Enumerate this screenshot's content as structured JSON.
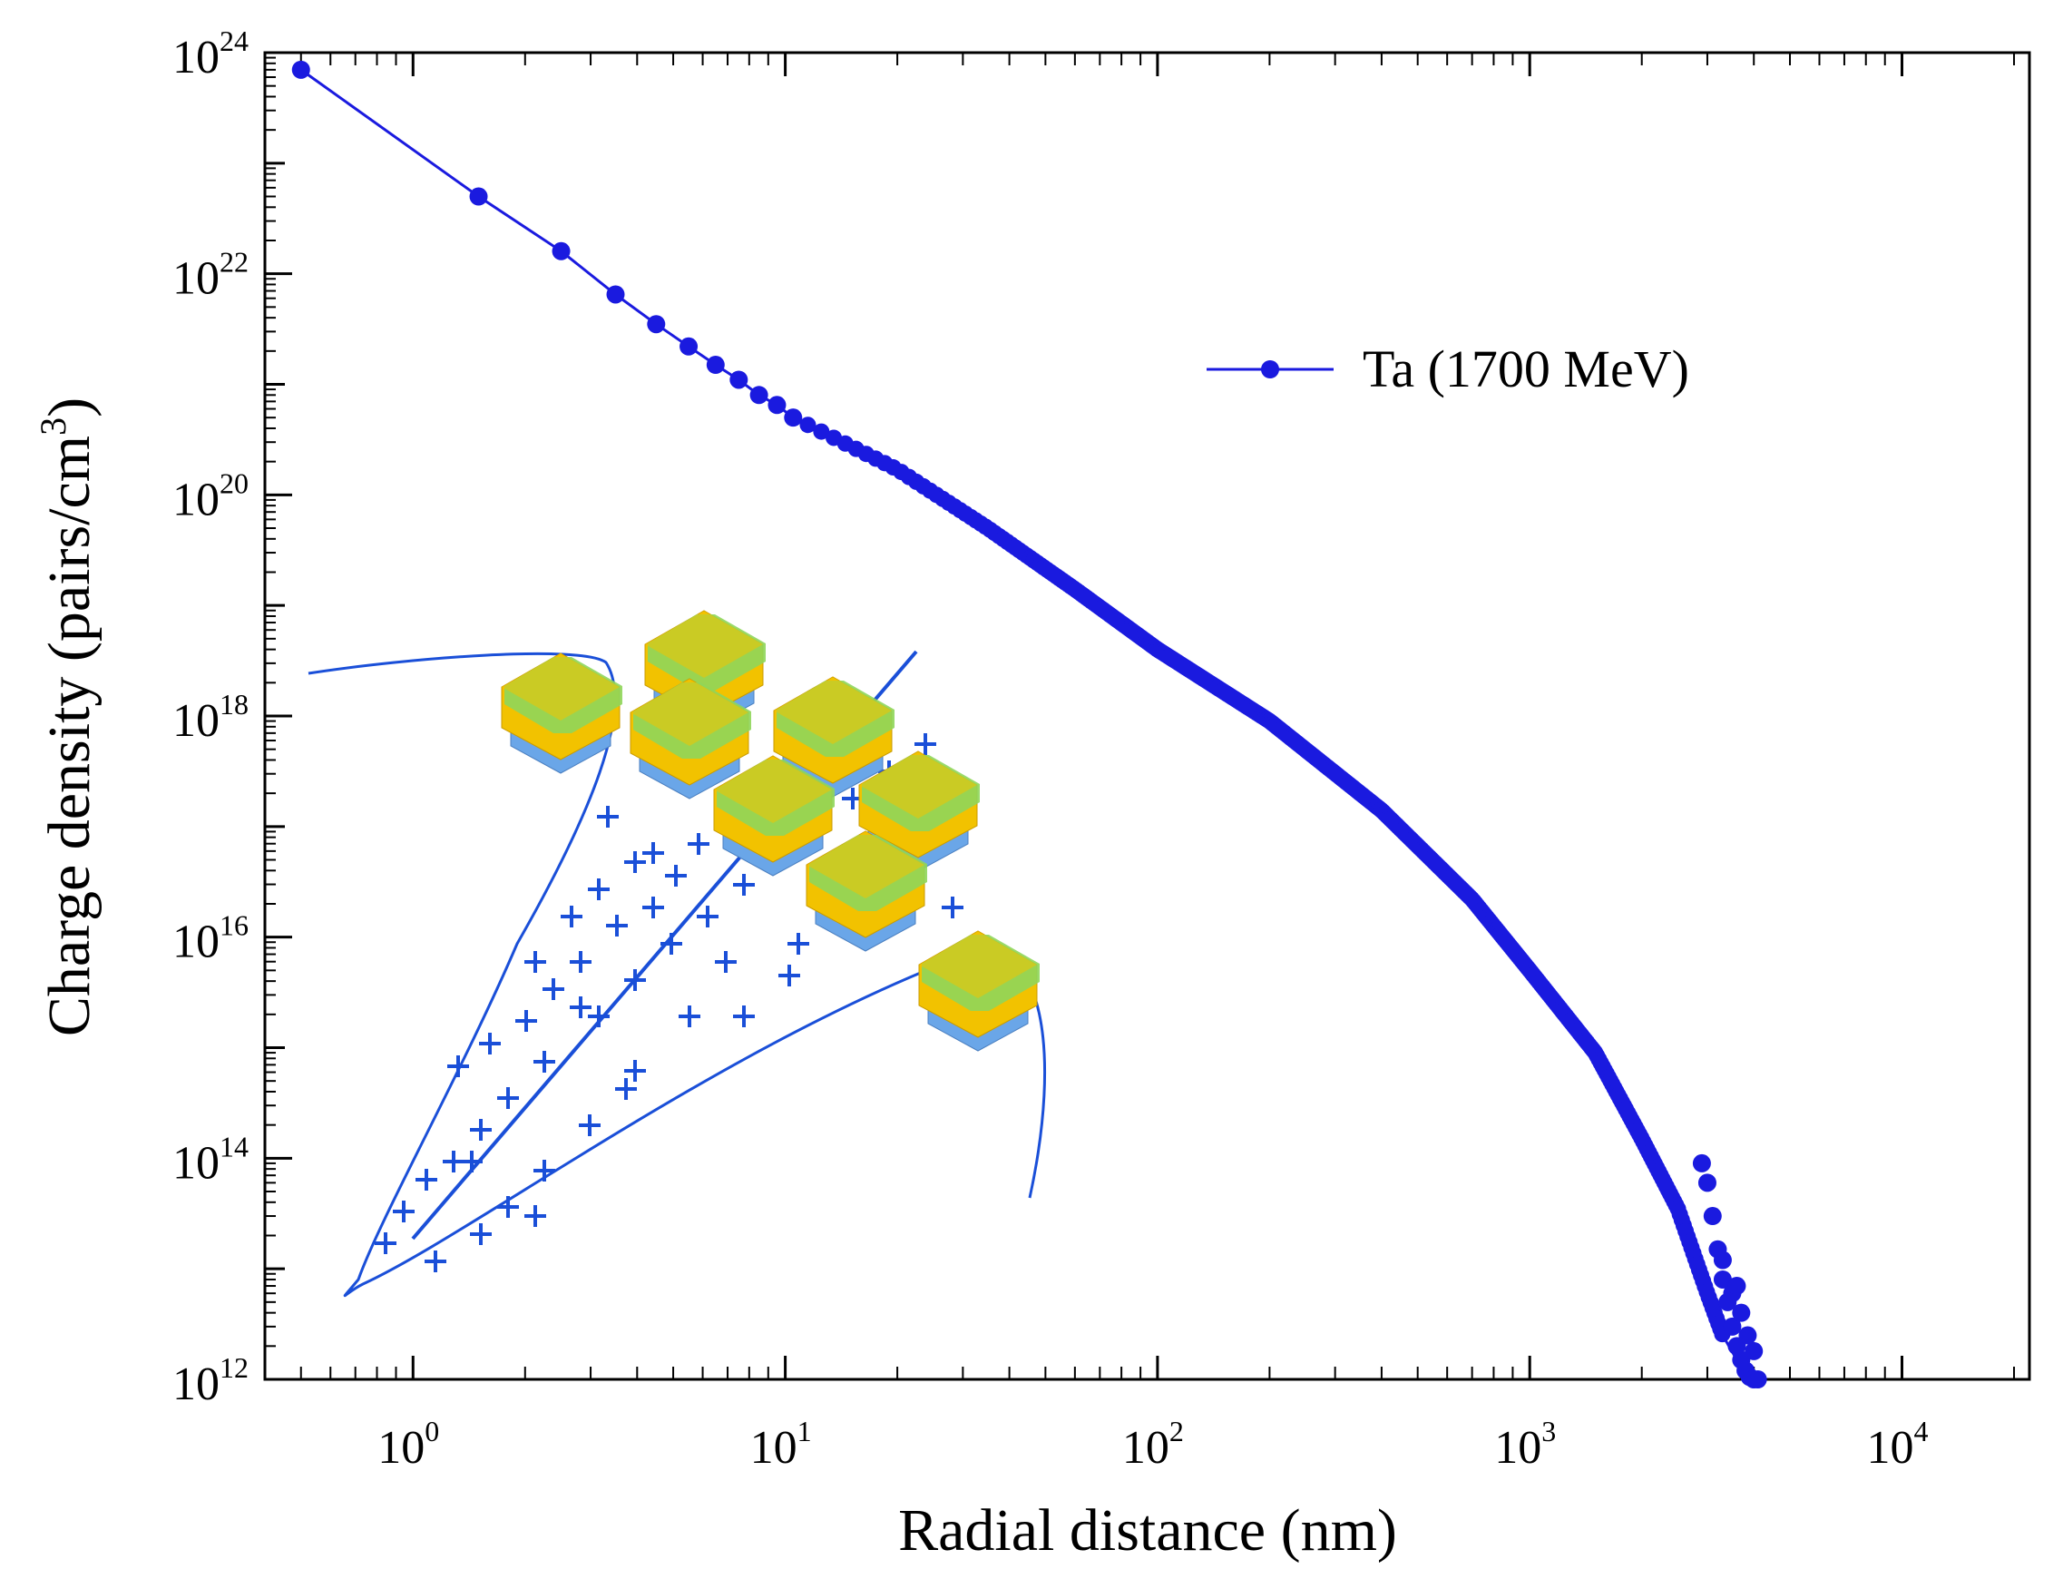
{
  "chart_data": {
    "type": "line",
    "xlabel": "Radial distance (nm)",
    "ylabel": "Charge density (pairs/cm",
    "ylabel_sup": "3",
    "ylabel_tail": ")",
    "xscale": "log",
    "yscale": "log",
    "xlim": [
      0.4,
      22000
    ],
    "ylim": [
      1000000000000.0,
      1e+24
    ],
    "x_ticks": [
      {
        "base": "10",
        "exp": "0",
        "value": 1
      },
      {
        "base": "10",
        "exp": "1",
        "value": 10
      },
      {
        "base": "10",
        "exp": "2",
        "value": 100
      },
      {
        "base": "10",
        "exp": "3",
        "value": 1000
      },
      {
        "base": "10",
        "exp": "4",
        "value": 10000
      }
    ],
    "y_ticks": [
      {
        "base": "10",
        "exp": "12",
        "value": 1000000000000.0
      },
      {
        "base": "10",
        "exp": "14",
        "value": 100000000000000.0
      },
      {
        "base": "10",
        "exp": "16",
        "value": 1e+16
      },
      {
        "base": "10",
        "exp": "18",
        "value": 1e+18
      },
      {
        "base": "10",
        "exp": "20",
        "value": 1e+20
      },
      {
        "base": "10",
        "exp": "22",
        "value": 1e+22
      },
      {
        "base": "10",
        "exp": "24",
        "value": 1e+24
      }
    ],
    "legend_position": "upper-right",
    "series": [
      {
        "name": "Ta (1700 MeV)",
        "color": "#1a1adf",
        "marker": "circle",
        "x": [
          0.5,
          1.5,
          2.5,
          3.5,
          4.5,
          5.5,
          6.5,
          7.5,
          8.5,
          9.5,
          10.5,
          20,
          35,
          60,
          100,
          200,
          400,
          700,
          1000,
          1500,
          2000,
          2500,
          3000,
          3300,
          3600,
          3900,
          4100
        ],
        "y": [
          7e+23,
          5e+22,
          1.6e+22,
          6.5e+21,
          3.5e+21,
          2.2e+21,
          1.5e+21,
          1.1e+21,
          8e+20,
          6.5e+20,
          5e+20,
          1.7e+20,
          5e+19,
          1.4e+19,
          4e+18,
          9e+17,
          1.4e+17,
          2.2e+16,
          5000000000000000.0,
          900000000000000.0,
          150000000000000.0,
          35000000000000.0,
          6000000000000.0,
          2500000000000.0,
          1500000000000.0,
          1100000000000.0,
          1000000000000.0
        ]
      }
    ]
  },
  "inset": {
    "description_icon": "ion-track-transistor-array-icon",
    "track_color": "#1a4fd8",
    "cell_colors": [
      "#f2c200",
      "#8fd65a",
      "#6aa6e8"
    ]
  }
}
